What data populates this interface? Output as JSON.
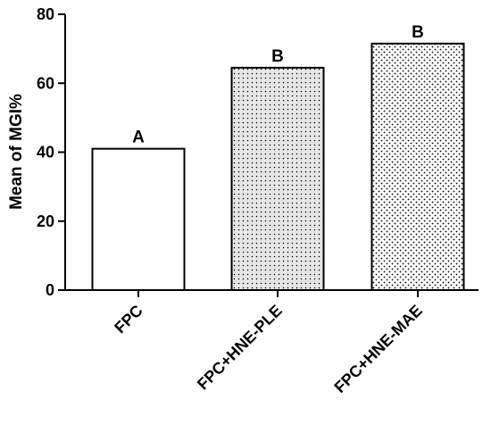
{
  "chart_data": {
    "type": "bar",
    "categories": [
      "FPC",
      "FPC+HNE-PLE",
      "FPC+HNE-MAE"
    ],
    "values": [
      41,
      64.5,
      71.5
    ],
    "significance_labels": [
      "A",
      "B",
      "B"
    ],
    "bar_fills": [
      "none",
      "fine-dots",
      "coarse-dots"
    ],
    "ylabel": "Mean of MGI%",
    "ylim": [
      0,
      80
    ],
    "yticks": [
      0,
      20,
      40,
      60,
      80
    ],
    "grid": false,
    "legend": "none",
    "colors": {
      "bar_stroke": "#000000",
      "pattern_dot": "#000000",
      "pattern_bg_ple": "#e6e6e6",
      "pattern_bg_mae": "#ffffff"
    }
  }
}
